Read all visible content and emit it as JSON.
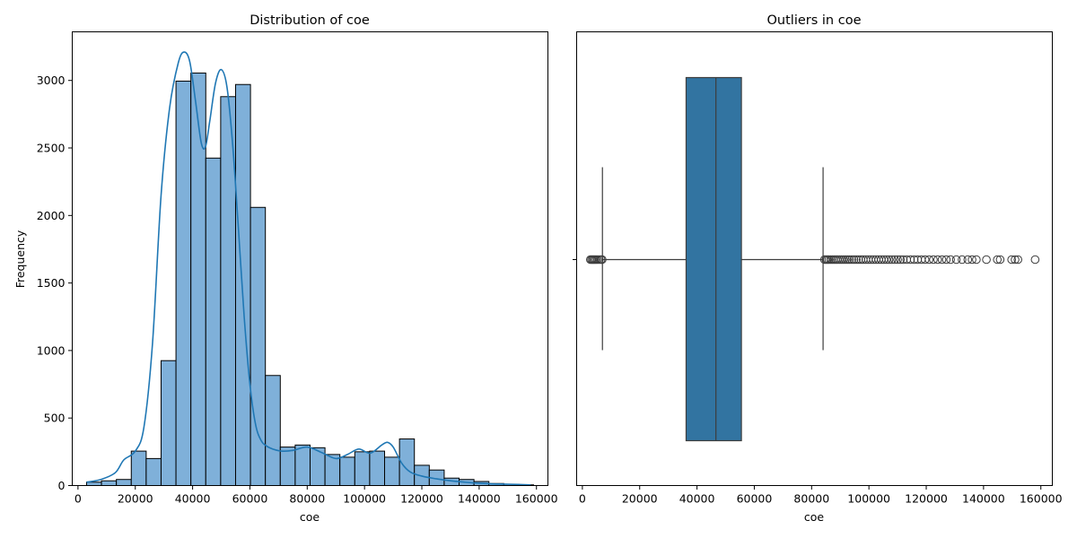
{
  "chart_data": [
    {
      "type": "bar",
      "title": "Distribution of coe",
      "xlabel": "coe",
      "ylabel": "Frequency",
      "xlim": [
        -2000,
        164000
      ],
      "ylim": [
        0,
        3360
      ],
      "xticks": [
        0,
        20000,
        40000,
        60000,
        80000,
        100000,
        120000,
        140000,
        160000
      ],
      "xtick_labels": [
        "0",
        "20000",
        "40000",
        "60000",
        "80000",
        "100000",
        "120000",
        "140000",
        "160000"
      ],
      "yticks": [
        0,
        500,
        1000,
        1500,
        2000,
        2500,
        3000
      ],
      "ytick_labels": [
        "0",
        "500",
        "1000",
        "1500",
        "2000",
        "2500",
        "3000"
      ],
      "bin_start": 3000,
      "bin_width": 5200,
      "values": [
        25,
        35,
        45,
        255,
        200,
        925,
        2995,
        3055,
        2425,
        2880,
        2970,
        2060,
        815,
        285,
        300,
        280,
        230,
        210,
        250,
        255,
        210,
        345,
        150,
        115,
        55,
        45,
        30,
        15,
        10,
        5
      ],
      "bar_color": "#7fb0d9",
      "edge_color": "#000000",
      "kde": {
        "name": "",
        "color": "#1f77b4",
        "x": [
          3000,
          8000,
          13000,
          16000,
          20000,
          23000,
          26000,
          29000,
          32000,
          35000,
          37000,
          39000,
          41000,
          43000,
          44500,
          46000,
          48000,
          50000,
          52000,
          54000,
          56000,
          58000,
          60000,
          62000,
          64000,
          66000,
          68000,
          71000,
          75000,
          80000,
          85000,
          90000,
          94000,
          98000,
          102000,
          106000,
          108000,
          110000,
          113000,
          116000,
          120000,
          125000,
          130000,
          135000,
          140000,
          145000,
          150000,
          158000
        ],
        "y": [
          25,
          45,
          95,
          190,
          255,
          430,
          1050,
          2150,
          2800,
          3130,
          3210,
          3140,
          2850,
          2540,
          2510,
          2700,
          2980,
          3080,
          2950,
          2520,
          1900,
          1250,
          750,
          450,
          330,
          290,
          270,
          255,
          260,
          285,
          245,
          200,
          230,
          270,
          240,
          300,
          320,
          285,
          165,
          100,
          70,
          50,
          35,
          25,
          17,
          12,
          10,
          5
        ]
      }
    },
    {
      "type": "boxplot",
      "title": "Outliers in coe",
      "xlabel": "coe",
      "xlim": [
        -2000,
        164000
      ],
      "xticks": [
        0,
        20000,
        40000,
        60000,
        80000,
        100000,
        120000,
        140000,
        160000
      ],
      "xtick_labels": [
        "0",
        "20000",
        "40000",
        "60000",
        "80000",
        "100000",
        "120000",
        "140000",
        "160000"
      ],
      "whisker_low": 7000,
      "q1": 36200,
      "median": 46600,
      "q3": 55500,
      "whisker_high": 84000,
      "box_color": "#3274a1",
      "line_color": "#3d3d3d",
      "outliers": [
        2800,
        3200,
        3600,
        4000,
        4400,
        4800,
        5300,
        5900,
        6500,
        6900,
        84500,
        85000,
        85500,
        86000,
        86600,
        87200,
        87800,
        88400,
        89000,
        89700,
        90400,
        91100,
        91800,
        92500,
        93200,
        94000,
        94800,
        95600,
        96400,
        97200,
        98000,
        98900,
        99800,
        100700,
        101600,
        102500,
        103400,
        104300,
        105200,
        106100,
        107000,
        108000,
        109000,
        110000,
        111000,
        112000,
        113200,
        114500,
        115800,
        117000,
        118300,
        119600,
        121000,
        122500,
        124000,
        125500,
        127000,
        128500,
        130500,
        132500,
        134500,
        136000,
        137500,
        141000,
        144800,
        145800,
        149800,
        151000,
        152000,
        158000
      ]
    }
  ]
}
